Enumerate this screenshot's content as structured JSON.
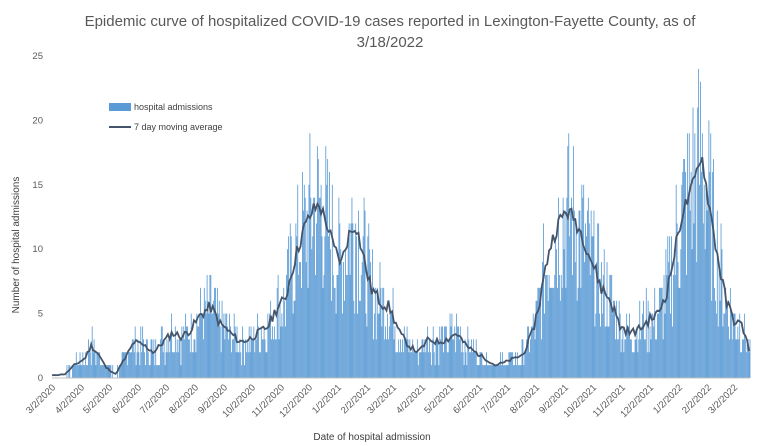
{
  "chart_data": {
    "type": "bar",
    "title_line1": "Epidemic curve of hospitalized COVID-19 cases reported in Lexington-Fayette County, as of",
    "title_line2": "3/18/2022",
    "xlabel": "Date of hospital admission",
    "ylabel": "Number of hospital admissions",
    "ylim": [
      0,
      25
    ],
    "yticks": [
      0,
      5,
      10,
      15,
      20,
      25
    ],
    "x_range": [
      "2020-03-01",
      "2022-03-18"
    ],
    "x_ticks": [
      "3/2/2020",
      "4/2/2020",
      "5/2/2020",
      "6/2/2020",
      "7/2/2020",
      "8/2/2020",
      "9/2/2020",
      "10/2/2020",
      "11/2/2020",
      "12/2/2020",
      "1/2/2021",
      "2/2/2021",
      "3/2/2021",
      "4/2/2021",
      "5/2/2021",
      "6/2/2021",
      "7/2/2021",
      "8/2/2021",
      "9/2/2021",
      "10/2/2021",
      "11/2/2021",
      "12/2/2021",
      "1/2/2022",
      "2/2/2022",
      "3/2/2022"
    ],
    "legend": {
      "position": "top-left",
      "bars_label": "hospital admissions",
      "line_label": "7 day moving average"
    },
    "colors": {
      "bars": "#5b9bd5",
      "line": "#44546a",
      "axis": "#bfbfbf"
    },
    "series": [
      {
        "name": "7 day moving average",
        "type": "line",
        "points": [
          {
            "date": "2020-03-01",
            "value": 0.2
          },
          {
            "date": "2020-03-15",
            "value": 0.3
          },
          {
            "date": "2020-03-25",
            "value": 1.0
          },
          {
            "date": "2020-04-05",
            "value": 1.5
          },
          {
            "date": "2020-04-12",
            "value": 2.5
          },
          {
            "date": "2020-04-20",
            "value": 1.8
          },
          {
            "date": "2020-04-28",
            "value": 0.8
          },
          {
            "date": "2020-05-08",
            "value": 0.3
          },
          {
            "date": "2020-05-18",
            "value": 1.5
          },
          {
            "date": "2020-05-28",
            "value": 2.8
          },
          {
            "date": "2020-06-08",
            "value": 2.5
          },
          {
            "date": "2020-06-18",
            "value": 2.0
          },
          {
            "date": "2020-06-28",
            "value": 2.8
          },
          {
            "date": "2020-07-08",
            "value": 3.5
          },
          {
            "date": "2020-07-18",
            "value": 3.2
          },
          {
            "date": "2020-07-28",
            "value": 3.8
          },
          {
            "date": "2020-08-08",
            "value": 5.0
          },
          {
            "date": "2020-08-18",
            "value": 5.5
          },
          {
            "date": "2020-08-28",
            "value": 4.2
          },
          {
            "date": "2020-09-08",
            "value": 3.5
          },
          {
            "date": "2020-09-18",
            "value": 2.8
          },
          {
            "date": "2020-09-28",
            "value": 3.0
          },
          {
            "date": "2020-10-08",
            "value": 3.5
          },
          {
            "date": "2020-10-18",
            "value": 4.0
          },
          {
            "date": "2020-10-28",
            "value": 5.5
          },
          {
            "date": "2020-11-05",
            "value": 6.0
          },
          {
            "date": "2020-11-15",
            "value": 9.0
          },
          {
            "date": "2020-11-25",
            "value": 11.5
          },
          {
            "date": "2020-12-05",
            "value": 13.0
          },
          {
            "date": "2020-12-12",
            "value": 13.5
          },
          {
            "date": "2020-12-20",
            "value": 12.0
          },
          {
            "date": "2020-12-28",
            "value": 10.0
          },
          {
            "date": "2021-01-05",
            "value": 9.0
          },
          {
            "date": "2021-01-12",
            "value": 11.0
          },
          {
            "date": "2021-01-20",
            "value": 12.0
          },
          {
            "date": "2021-01-28",
            "value": 9.5
          },
          {
            "date": "2021-02-05",
            "value": 7.0
          },
          {
            "date": "2021-02-15",
            "value": 6.0
          },
          {
            "date": "2021-02-25",
            "value": 5.5
          },
          {
            "date": "2021-03-08",
            "value": 3.5
          },
          {
            "date": "2021-03-18",
            "value": 2.5
          },
          {
            "date": "2021-03-28",
            "value": 2.0
          },
          {
            "date": "2021-04-08",
            "value": 3.0
          },
          {
            "date": "2021-04-18",
            "value": 2.8
          },
          {
            "date": "2021-04-28",
            "value": 3.0
          },
          {
            "date": "2021-05-08",
            "value": 3.5
          },
          {
            "date": "2021-05-18",
            "value": 2.5
          },
          {
            "date": "2021-05-28",
            "value": 2.0
          },
          {
            "date": "2021-06-08",
            "value": 1.5
          },
          {
            "date": "2021-06-18",
            "value": 1.0
          },
          {
            "date": "2021-06-28",
            "value": 1.2
          },
          {
            "date": "2021-07-08",
            "value": 1.5
          },
          {
            "date": "2021-07-18",
            "value": 1.8
          },
          {
            "date": "2021-07-28",
            "value": 3.5
          },
          {
            "date": "2021-08-05",
            "value": 6.0
          },
          {
            "date": "2021-08-15",
            "value": 10.0
          },
          {
            "date": "2021-08-25",
            "value": 12.0
          },
          {
            "date": "2021-09-02",
            "value": 13.0
          },
          {
            "date": "2021-09-10",
            "value": 12.5
          },
          {
            "date": "2021-09-20",
            "value": 11.0
          },
          {
            "date": "2021-09-30",
            "value": 9.0
          },
          {
            "date": "2021-10-10",
            "value": 7.0
          },
          {
            "date": "2021-10-20",
            "value": 6.0
          },
          {
            "date": "2021-10-30",
            "value": 4.0
          },
          {
            "date": "2021-11-10",
            "value": 3.5
          },
          {
            "date": "2021-11-20",
            "value": 3.8
          },
          {
            "date": "2021-11-30",
            "value": 4.5
          },
          {
            "date": "2021-12-10",
            "value": 5.0
          },
          {
            "date": "2021-12-20",
            "value": 7.0
          },
          {
            "date": "2021-12-28",
            "value": 10.0
          },
          {
            "date": "2022-01-05",
            "value": 13.0
          },
          {
            "date": "2022-01-12",
            "value": 14.0
          },
          {
            "date": "2022-01-20",
            "value": 16.0
          },
          {
            "date": "2022-01-25",
            "value": 17.5
          },
          {
            "date": "2022-02-01",
            "value": 14.0
          },
          {
            "date": "2022-02-10",
            "value": 10.0
          },
          {
            "date": "2022-02-20",
            "value": 6.0
          },
          {
            "date": "2022-03-01",
            "value": 4.5
          },
          {
            "date": "2022-03-10",
            "value": 4.0
          },
          {
            "date": "2022-03-18",
            "value": 2.0
          }
        ]
      }
    ]
  }
}
